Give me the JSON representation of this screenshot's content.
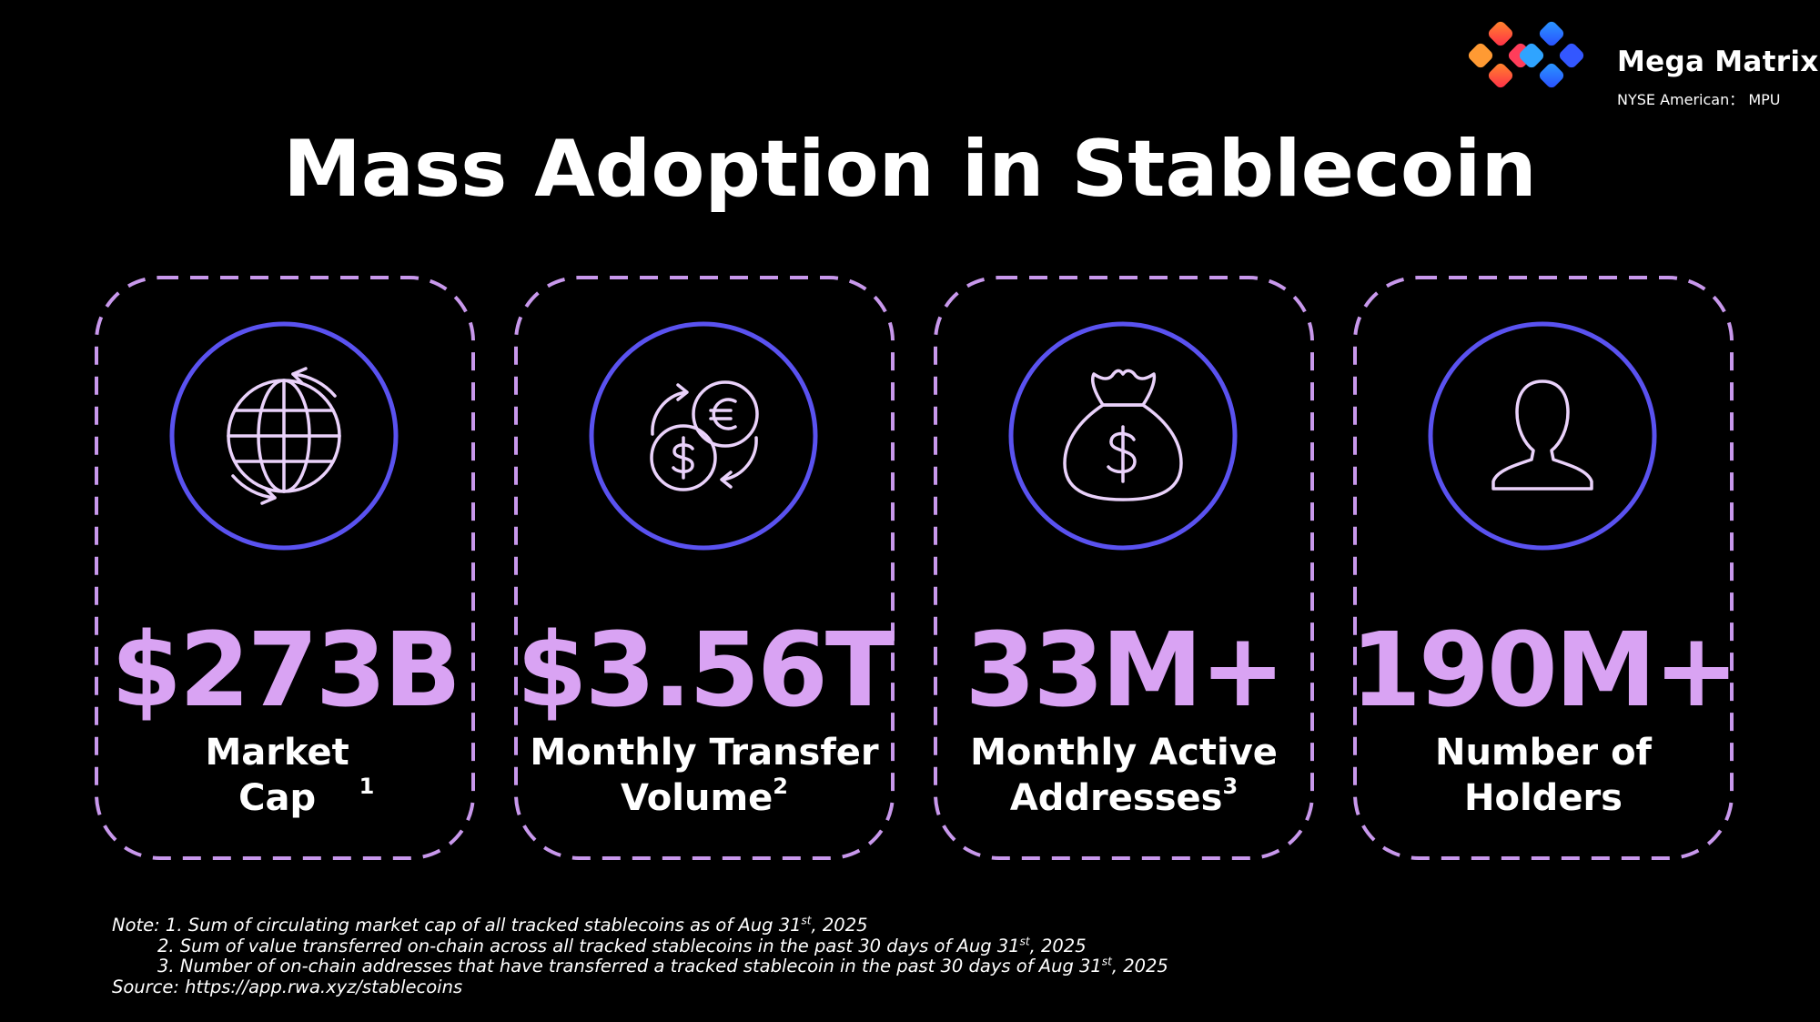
{
  "brand": {
    "name": "Mega Matrix",
    "ticker": "NYSE American： MPU"
  },
  "title": "Mass Adoption in Stablecoin",
  "cards": [
    {
      "value": "$273B",
      "label": "Market Cap",
      "footnote": "1",
      "icon": "globe-icon"
    },
    {
      "value": "$3.56T",
      "label_line1": "Monthly Transfer",
      "label_line2": "Volume",
      "footnote": "2",
      "icon": "currency-exchange-icon"
    },
    {
      "value": "33M+",
      "label_line1": "Monthly Active",
      "label_line2": "Addresses",
      "footnote": "3",
      "icon": "money-bag-icon"
    },
    {
      "value": "190M+",
      "label_line1": "Number of",
      "label_line2": "Holders",
      "icon": "user-icon"
    }
  ],
  "notes": {
    "note1_prefix": "Note: 1. Sum of circulating market cap of all tracked stablecoins as of Aug 31",
    "note1_sup": "st",
    "note1_suffix": ", 2025",
    "note2_prefix": "2. Sum of value transferred on-chain across all tracked stablecoins in the past 30 days of Aug 31",
    "note2_sup": "st",
    "note2_suffix": ", 2025",
    "note3_prefix": "3. Number of on-chain addresses that have transferred a tracked stablecoin in the past 30 days of Aug 31",
    "note3_sup": "st",
    "note3_suffix": ", 2025",
    "source": "Source: https://app.rwa.xyz/stablecoins"
  },
  "colors": {
    "background": "#000000",
    "accent_value": "#d9a3f3",
    "dashed_border": "#c898ec",
    "icon_ring": "#5a52f0",
    "icon_stroke": "#ead2fb"
  }
}
